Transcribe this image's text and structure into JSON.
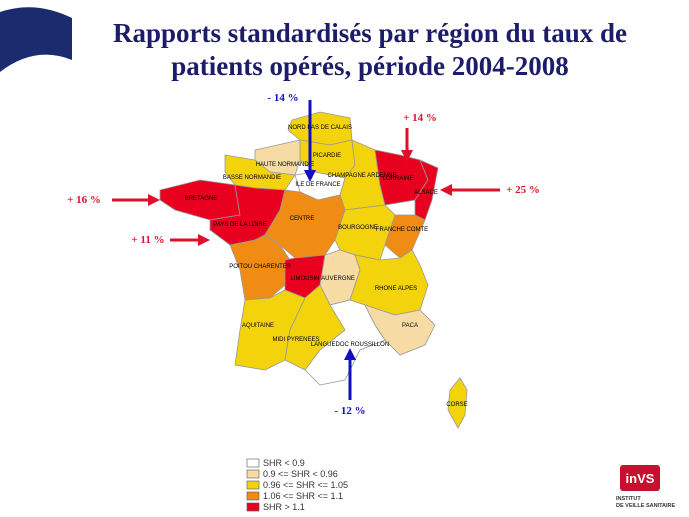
{
  "header": {
    "title_lines": [
      "Rapports standardisés par région du taux de",
      "patients opérés, période 2004-2008"
    ]
  },
  "legend": [
    {
      "label": "SHR < 0.9",
      "color": "#ffffff"
    },
    {
      "label": "0.9 <= SHR < 0.96",
      "color": "#f6dca4"
    },
    {
      "label": "0.96 <= SHR <= 1.05",
      "color": "#f2d30c"
    },
    {
      "label": "1.06 <= SHR <= 1.1",
      "color": "#f08c14"
    },
    {
      "label": "SHR > 1.1",
      "color": "#e8001e"
    }
  ],
  "regions": [
    {
      "name": "NORD PAS DE CALAIS",
      "class": 2
    },
    {
      "name": "PICARDIE",
      "class": 2
    },
    {
      "name": "HAUTE NORMANDIE",
      "class": 1
    },
    {
      "name": "BASSE NORMANDIE",
      "class": 2
    },
    {
      "name": "ILE DE FRANCE",
      "class": 0
    },
    {
      "name": "CHAMPAGNE ARDENNE",
      "class": 2
    },
    {
      "name": "LORRAINE",
      "class": 4
    },
    {
      "name": "ALSACE",
      "class": 4
    },
    {
      "name": "BRETAGNE",
      "class": 4
    },
    {
      "name": "PAYS DE LA LOIRE",
      "class": 4
    },
    {
      "name": "CENTRE",
      "class": 3
    },
    {
      "name": "BOURGOGNE",
      "class": 2
    },
    {
      "name": "FRANCHE COMTE",
      "class": 3
    },
    {
      "name": "POITOU CHARENTES",
      "class": 3
    },
    {
      "name": "LIMOUSIN",
      "class": 4
    },
    {
      "name": "AUVERGNE",
      "class": 1
    },
    {
      "name": "RHONE ALPES",
      "class": 2
    },
    {
      "name": "AQUITAINE",
      "class": 2
    },
    {
      "name": "MIDI PYRENEES",
      "class": 2
    },
    {
      "name": "LANGUEDOC ROUSSILLON",
      "class": 0
    },
    {
      "name": "PACA",
      "class": 1
    },
    {
      "name": "CORSE",
      "class": 2
    }
  ],
  "annotations": [
    "- 14 %",
    "+ 14 %",
    "+ 25 %",
    "+ 16 %",
    "+ 11 %",
    "- 12 %"
  ],
  "logo": {
    "mark": "inVS",
    "line1": "INSTITUT",
    "line2": "DE VEILLE SANITAIRE"
  }
}
